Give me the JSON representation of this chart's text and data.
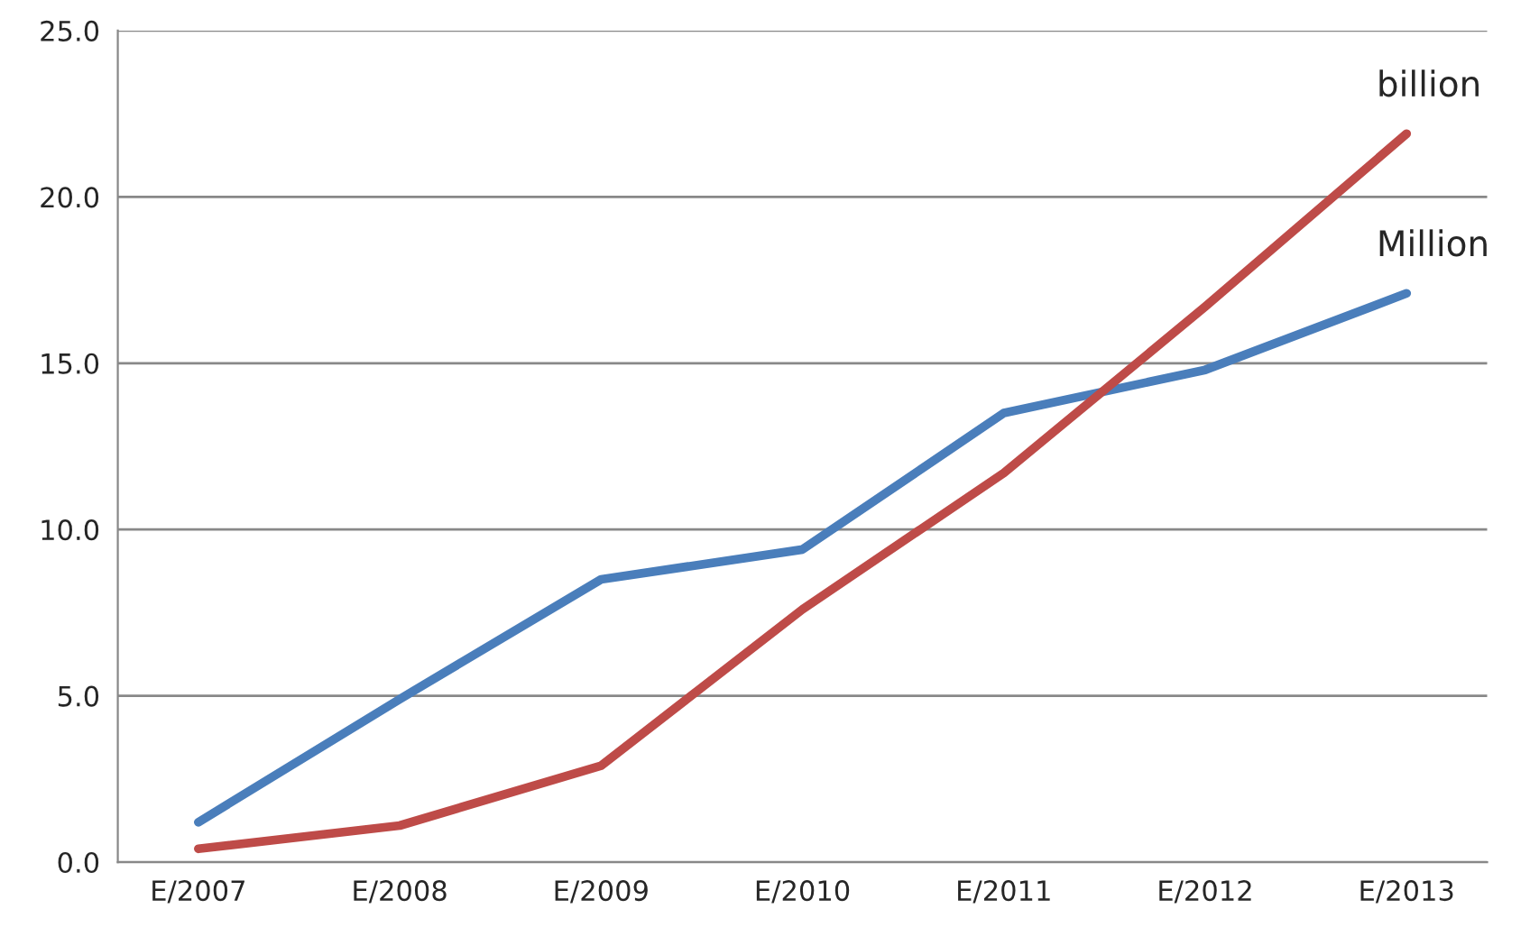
{
  "chart_data": {
    "type": "line",
    "categories": [
      "E/2007",
      "E/2008",
      "E/2009",
      "E/2010",
      "E/2011",
      "E/2012",
      "E/2013"
    ],
    "series": [
      {
        "name": "Million",
        "color": "#4a7ebb",
        "values": [
          1.2,
          4.9,
          8.5,
          9.4,
          13.5,
          14.8,
          17.1
        ]
      },
      {
        "name": "billion",
        "color": "#be4b48",
        "values": [
          0.4,
          1.1,
          2.9,
          7.6,
          11.7,
          16.7,
          21.9
        ]
      }
    ],
    "ylim": [
      0,
      25
    ],
    "yticks": [
      {
        "value": 0,
        "label": "0.0"
      },
      {
        "value": 5,
        "label": "5.0"
      },
      {
        "value": 10,
        "label": "10.0"
      },
      {
        "value": 15,
        "label": "15.0"
      },
      {
        "value": 20,
        "label": "20.0"
      },
      {
        "value": 25,
        "label": "25.0"
      }
    ],
    "grid": "y",
    "legend": false,
    "marker": "none",
    "line_style": "solid"
  }
}
